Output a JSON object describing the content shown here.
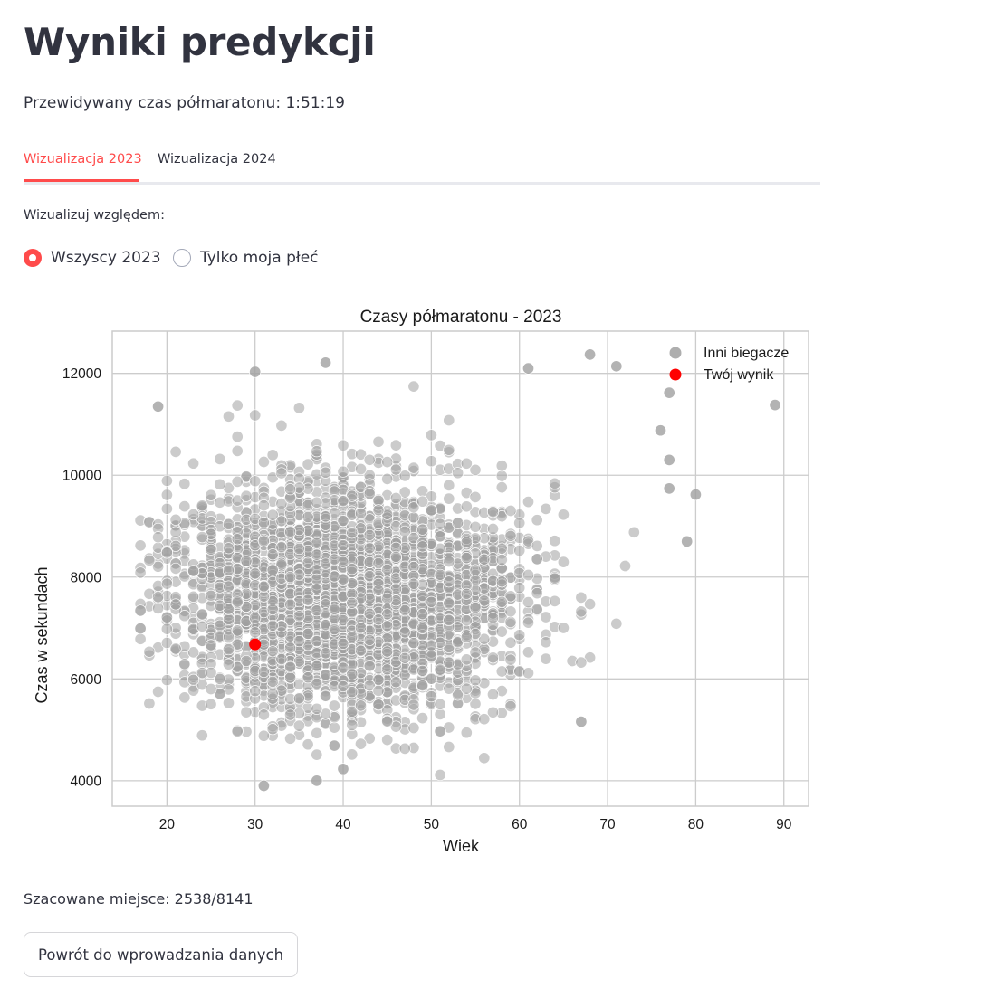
{
  "page": {
    "title": "Wyniki predykcji",
    "prediction_text": "Przewidywany czas półmaratonu: 1:51:19"
  },
  "tabs": [
    {
      "label": "Wizualizacja 2023",
      "active": true
    },
    {
      "label": "Wizualizacja 2024",
      "active": false
    }
  ],
  "radio": {
    "label": "Wizualizuj względem:",
    "options": [
      {
        "label": "Wszyscy 2023",
        "checked": true
      },
      {
        "label": "Tylko moja płeć",
        "checked": false
      }
    ]
  },
  "chart_data": {
    "type": "scatter",
    "title": "Czasy półmaratonu - 2023",
    "xlabel": "Wiek",
    "ylabel": "Czas w sekundach",
    "xlim": [
      13.8,
      92.8
    ],
    "ylim": [
      3500,
      12830
    ],
    "xticks": [
      20,
      30,
      40,
      50,
      60,
      70,
      80,
      90
    ],
    "yticks": [
      4000,
      6000,
      8000,
      10000,
      12000
    ],
    "grid": true,
    "legend_position": "top-right",
    "series": [
      {
        "name": "Inni biegacze",
        "color": "#a0a0a0",
        "note_points_sampled_distribution": "dense cloud, ages 17-89, times 3900-12300",
        "outliers": [
          {
            "x": 89,
            "y": 11380
          },
          {
            "x": 80,
            "y": 9620
          },
          {
            "x": 79,
            "y": 8700
          },
          {
            "x": 77,
            "y": 11620
          },
          {
            "x": 77,
            "y": 10300
          },
          {
            "x": 77,
            "y": 9740
          },
          {
            "x": 76,
            "y": 10880
          },
          {
            "x": 71,
            "y": 12140
          },
          {
            "x": 68,
            "y": 12370
          },
          {
            "x": 67,
            "y": 5160
          },
          {
            "x": 61,
            "y": 12100
          },
          {
            "x": 38,
            "y": 12210
          },
          {
            "x": 30,
            "y": 12030
          },
          {
            "x": 31,
            "y": 3900
          },
          {
            "x": 37,
            "y": 4000
          },
          {
            "x": 40,
            "y": 4230
          },
          {
            "x": 19,
            "y": 11350
          },
          {
            "x": 17,
            "y": 7340
          },
          {
            "x": 17,
            "y": 6990
          }
        ]
      },
      {
        "name": "Twój wynik",
        "color": "#ff0000",
        "points": [
          {
            "x": 30,
            "y": 6679
          }
        ]
      }
    ]
  },
  "result": {
    "place_text": "Szacowane miejsce: 2538/8141"
  },
  "buttons": {
    "back_label": "Powrót do wprowadzania danych"
  }
}
